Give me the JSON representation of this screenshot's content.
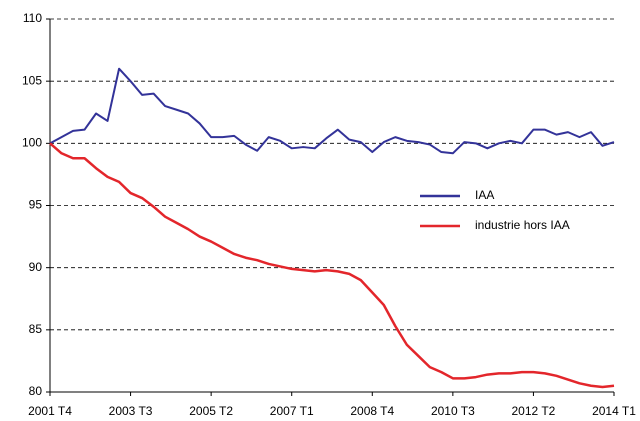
{
  "chart_data": {
    "type": "line",
    "categories": [
      "2001 T4",
      null,
      null,
      null,
      null,
      null,
      null,
      "2003 T3",
      null,
      null,
      null,
      null,
      null,
      null,
      "2005 T2",
      null,
      null,
      null,
      null,
      null,
      null,
      "2007 T1",
      null,
      null,
      null,
      null,
      null,
      null,
      "2008 T4",
      null,
      null,
      null,
      null,
      null,
      null,
      "2010 T3",
      null,
      null,
      null,
      null,
      null,
      null,
      "2012 T2",
      null,
      null,
      null,
      null,
      null,
      null,
      "2014 T1"
    ],
    "series": [
      {
        "name": "IAA",
        "color": "#333399",
        "values": [
          100,
          100.5,
          101,
          101.1,
          102.4,
          101.8,
          106,
          105,
          103.9,
          104,
          103,
          102.7,
          102.4,
          101.6,
          100.5,
          100.5,
          100.6,
          99.9,
          99.4,
          100.5,
          100.2,
          99.6,
          99.7,
          99.6,
          100.4,
          101.1,
          100.3,
          100.1,
          99.3,
          100.1,
          100.5,
          100.2,
          100.1,
          99.9,
          99.3,
          99.2,
          100.1,
          100,
          99.6,
          100,
          100.2,
          100,
          101.1,
          101.1,
          100.7,
          100.9,
          100.5,
          100.9,
          99.8,
          100.1
        ]
      },
      {
        "name": "industrie hors IAA",
        "color": "#e3262b",
        "values": [
          100,
          99.2,
          98.8,
          98.8,
          98,
          97.3,
          96.9,
          96,
          95.6,
          94.9,
          94.1,
          93.6,
          93.1,
          92.5,
          92.1,
          91.6,
          91.1,
          90.8,
          90.6,
          90.3,
          90.1,
          89.9,
          89.8,
          89.7,
          89.8,
          89.7,
          89.5,
          89,
          88,
          87,
          85.3,
          83.8,
          82.9,
          82,
          81.6,
          81.1,
          81.1,
          81.2,
          81.4,
          81.5,
          81.5,
          81.6,
          81.6,
          81.5,
          81.3,
          81,
          80.7,
          80.5,
          80.4,
          80.5
        ]
      }
    ],
    "ylim": [
      80,
      110
    ],
    "yticks": [
      80,
      85,
      90,
      95,
      100,
      105,
      110
    ],
    "grid": true,
    "legend": "right"
  }
}
